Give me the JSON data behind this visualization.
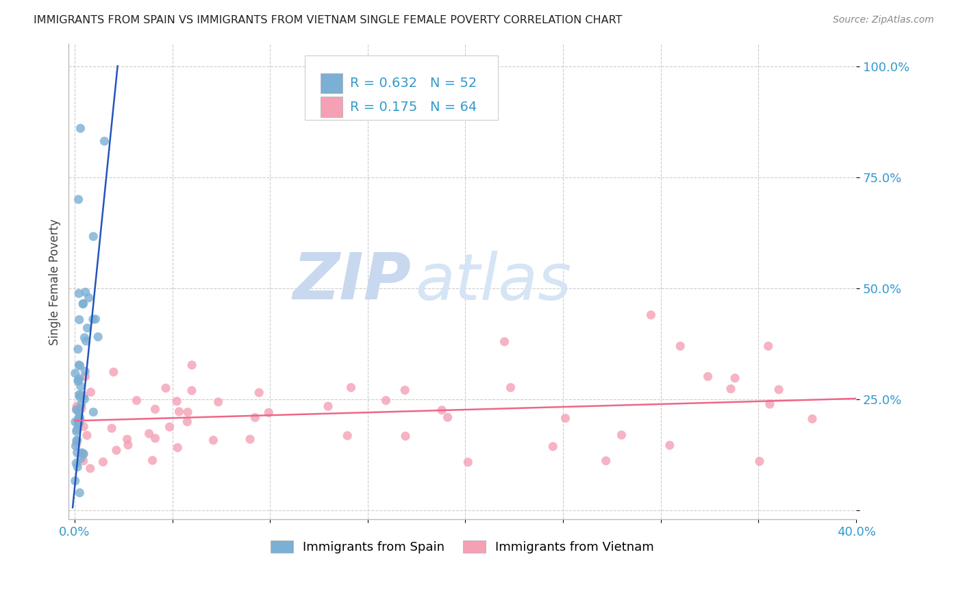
{
  "title": "IMMIGRANTS FROM SPAIN VS IMMIGRANTS FROM VIETNAM SINGLE FEMALE POVERTY CORRELATION CHART",
  "source": "Source: ZipAtlas.com",
  "ylabel": "Single Female Poverty",
  "legend_spain": "Immigrants from Spain",
  "legend_vietnam": "Immigrants from Vietnam",
  "r_spain": 0.632,
  "n_spain": 52,
  "r_vietnam": 0.175,
  "n_vietnam": 64,
  "color_spain": "#7BAFD4",
  "color_vietnam": "#F4A0B5",
  "color_line_spain": "#2255BB",
  "color_line_vietnam": "#EE6688",
  "watermark_zip": "ZIP",
  "watermark_atlas": "atlas",
  "xlim": [
    0.0,
    0.4
  ],
  "ylim": [
    0.0,
    1.05
  ],
  "xticks": [
    0.0,
    0.05,
    0.1,
    0.15,
    0.2,
    0.25,
    0.3,
    0.35,
    0.4
  ],
  "yticks": [
    0.0,
    0.25,
    0.5,
    0.75,
    1.0
  ],
  "ytick_labels": [
    "",
    "25.0%",
    "50.0%",
    "75.0%",
    "100.0%"
  ],
  "xtick_label_left": "0.0%",
  "xtick_label_right": "40.0%"
}
